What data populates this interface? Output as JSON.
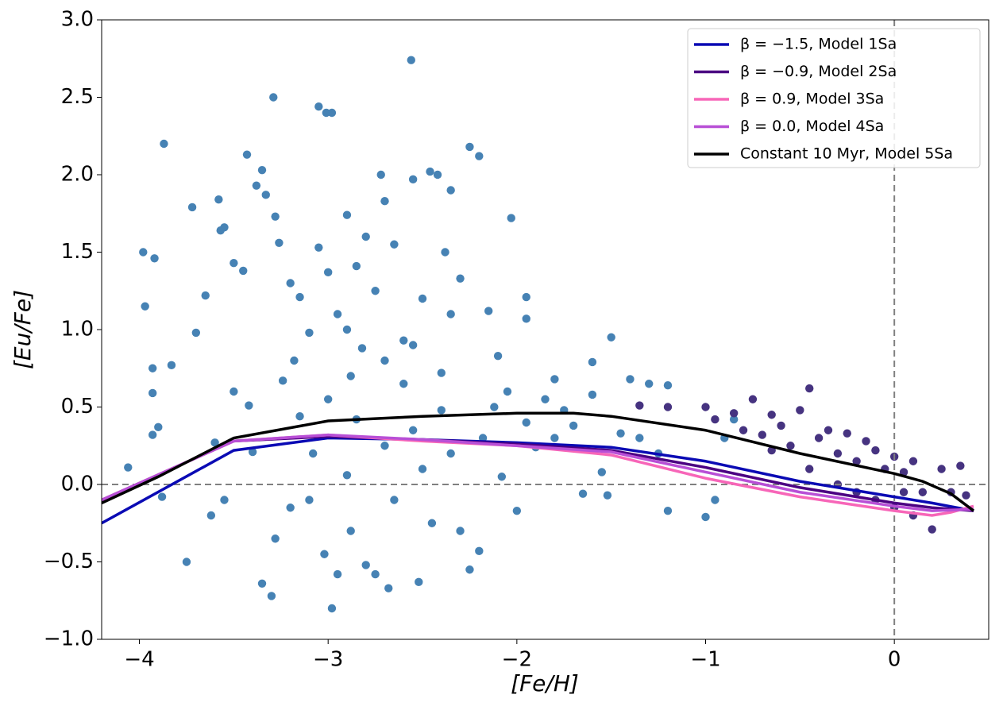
{
  "chart_data": {
    "type": "scatter",
    "x_label": "[Fe/H]",
    "y_label": "[Eu/Fe]",
    "xlim": [
      -4.2,
      0.5
    ],
    "ylim": [
      -1.0,
      3.0
    ],
    "xticks": [
      {
        "value": -4,
        "label": "−4"
      },
      {
        "value": -3,
        "label": "−3"
      },
      {
        "value": -2,
        "label": "−2"
      },
      {
        "value": -1,
        "label": "−1"
      },
      0
    ],
    "yticks": [
      {
        "value": -1.0,
        "label": "−1.0"
      },
      {
        "value": -0.5,
        "label": "−0.5"
      },
      {
        "value": 0.0,
        "label": "0.0"
      },
      {
        "value": 0.5,
        "label": "0.5"
      },
      {
        "value": 1.0,
        "label": "1.0"
      },
      {
        "value": 1.5,
        "label": "1.5"
      },
      {
        "value": 2.0,
        "label": "2.0"
      },
      {
        "value": 2.5,
        "label": "2.5"
      },
      {
        "value": 3.0,
        "label": "3.0"
      }
    ],
    "hlines": [
      0
    ],
    "vlines": [
      0
    ],
    "legend": "upper right",
    "scatter_series": [
      {
        "color": "#4682b4",
        "x": [
          -3.87,
          -3.98,
          -3.92,
          -3.97,
          -3.93,
          -3.93,
          -3.83,
          -3.9,
          -3.93,
          -4.06,
          -3.88,
          -3.75,
          -3.72,
          -3.58,
          -3.57,
          -3.55,
          -3.5,
          -3.45,
          -3.43,
          -3.38,
          -3.35,
          -3.33,
          -3.28,
          -3.29,
          -3.26,
          -3.2,
          -3.15,
          -3.1,
          -3.05,
          -3.01,
          -2.98,
          -3.05,
          -3.0,
          -2.95,
          -2.9,
          -2.88,
          -2.85,
          -2.8,
          -2.75,
          -2.72,
          -2.7,
          -2.65,
          -2.6,
          -2.56,
          -2.55,
          -2.5,
          -2.46,
          -2.42,
          -2.38,
          -2.35,
          -2.3,
          -2.25,
          -2.2,
          -2.15,
          -2.1,
          -2.03,
          -2.05,
          -1.95,
          -1.95,
          -1.8,
          -1.6,
          -1.5,
          -1.4,
          -1.3,
          -1.2,
          -3.65,
          -3.7,
          -3.6,
          -3.62,
          -3.55,
          -3.5,
          -3.42,
          -3.4,
          -3.35,
          -3.3,
          -3.28,
          -3.24,
          -3.2,
          -3.15,
          -3.1,
          -3.08,
          -3.02,
          -2.98,
          -2.95,
          -2.9,
          -2.88,
          -2.82,
          -2.8,
          -2.75,
          -2.7,
          -2.68,
          -2.65,
          -2.6,
          -2.55,
          -2.52,
          -2.5,
          -2.45,
          -2.4,
          -2.35,
          -2.3,
          -2.25,
          -2.2,
          -2.18,
          -2.12,
          -2.08,
          -2.0,
          -1.95,
          -1.9,
          -1.85,
          -1.8,
          -1.75,
          -1.7,
          -1.65,
          -1.6,
          -1.55,
          -1.52,
          -1.45,
          -1.35,
          -1.25,
          -1.2,
          -1.0,
          -0.95,
          -0.9,
          -0.85,
          -3.0,
          -2.85,
          -2.7,
          -2.55,
          -2.4,
          -2.35,
          -2.9,
          -3.18
        ],
        "values": [
          2.2,
          1.5,
          1.46,
          1.15,
          0.75,
          0.59,
          0.77,
          0.37,
          0.32,
          0.11,
          -0.08,
          -0.5,
          1.79,
          1.84,
          1.64,
          1.66,
          1.43,
          1.38,
          2.13,
          1.93,
          2.03,
          1.87,
          1.73,
          2.5,
          1.56,
          1.3,
          1.21,
          0.98,
          2.44,
          2.4,
          2.4,
          1.53,
          1.37,
          1.1,
          1.74,
          0.7,
          1.41,
          1.6,
          1.25,
          2.0,
          1.83,
          1.55,
          0.93,
          2.74,
          1.97,
          1.2,
          2.02,
          2.0,
          1.5,
          1.9,
          1.33,
          2.18,
          2.12,
          1.12,
          0.83,
          1.72,
          0.6,
          1.21,
          1.07,
          0.68,
          0.79,
          0.95,
          0.68,
          0.65,
          0.64,
          1.22,
          0.98,
          0.27,
          -0.2,
          -0.1,
          0.6,
          0.51,
          0.21,
          -0.64,
          -0.72,
          -0.35,
          0.67,
          -0.15,
          0.44,
          -0.1,
          0.2,
          -0.45,
          -0.8,
          -0.58,
          0.06,
          -0.3,
          0.88,
          -0.52,
          -0.58,
          0.25,
          -0.67,
          -0.1,
          0.65,
          0.35,
          -0.63,
          0.1,
          -0.25,
          0.48,
          0.2,
          -0.3,
          -0.55,
          -0.43,
          0.3,
          0.5,
          0.05,
          -0.17,
          0.4,
          0.24,
          0.55,
          0.3,
          0.48,
          0.38,
          -0.06,
          0.58,
          0.08,
          -0.07,
          0.33,
          0.3,
          0.2,
          -0.17,
          -0.21,
          -0.1,
          0.3,
          0.42,
          0.55,
          0.42,
          0.8,
          0.9,
          0.72,
          1.1,
          1.0,
          0.8
        ]
      },
      {
        "color": "#463380",
        "x": [
          -1.35,
          -1.2,
          -1.0,
          -0.95,
          -0.85,
          -0.8,
          -0.7,
          -0.65,
          -0.6,
          -0.55,
          -0.5,
          -0.45,
          -0.4,
          -0.35,
          -0.3,
          -0.25,
          -0.2,
          -0.15,
          -0.1,
          -0.05,
          0.0,
          0.05,
          0.1,
          0.15,
          0.2,
          0.25,
          0.3,
          0.35,
          0.38,
          -0.75,
          -0.65,
          -0.45,
          -0.3,
          -0.2,
          -0.1,
          0.0,
          0.1,
          0.05
        ],
        "values": [
          0.51,
          0.5,
          0.5,
          0.42,
          0.46,
          0.35,
          0.32,
          0.45,
          0.38,
          0.25,
          0.48,
          0.62,
          0.3,
          0.35,
          0.2,
          0.33,
          0.15,
          0.28,
          0.22,
          0.1,
          0.18,
          0.08,
          0.15,
          -0.05,
          -0.29,
          0.1,
          -0.05,
          0.12,
          -0.07,
          0.55,
          0.22,
          0.1,
          0.0,
          -0.05,
          -0.1,
          -0.15,
          -0.2,
          -0.05
        ]
      }
    ],
    "series": [
      {
        "name": "β = −1.5, Model 1Sa",
        "color": "#0a0ab4",
        "x": [
          -4.2,
          -3.5,
          -3.0,
          -2.5,
          -2.0,
          -1.5,
          -1.0,
          -0.5,
          0.0,
          0.2,
          0.42
        ],
        "values": [
          -0.25,
          0.22,
          0.3,
          0.29,
          0.27,
          0.24,
          0.15,
          0.02,
          -0.08,
          -0.12,
          -0.17
        ]
      },
      {
        "name": "β = −0.9, Model 2Sa",
        "color": "#4b0082",
        "x": [
          -4.2,
          -3.5,
          -3.0,
          -2.5,
          -2.0,
          -1.5,
          -1.0,
          -0.5,
          0.0,
          0.2,
          0.42
        ],
        "values": [
          -0.1,
          0.28,
          0.31,
          0.29,
          0.26,
          0.22,
          0.11,
          -0.02,
          -0.12,
          -0.15,
          -0.17
        ]
      },
      {
        "name": "β = 0.9, Model 3Sa",
        "color": "#f766b8",
        "x": [
          -4.2,
          -3.5,
          -3.0,
          -2.5,
          -2.0,
          -1.5,
          -1.0,
          -0.5,
          0.0,
          0.2,
          0.3,
          0.42
        ],
        "values": [
          -0.1,
          0.28,
          0.32,
          0.28,
          0.25,
          0.19,
          0.04,
          -0.08,
          -0.17,
          -0.2,
          -0.18,
          -0.14
        ]
      },
      {
        "name": "β = 0.0, Model 4Sa",
        "color": "#b84fd6",
        "x": [
          -4.2,
          -3.5,
          -3.0,
          -2.5,
          -2.0,
          -1.5,
          -1.0,
          -0.5,
          0.0,
          0.2,
          0.42
        ],
        "values": [
          -0.1,
          0.28,
          0.32,
          0.29,
          0.25,
          0.21,
          0.08,
          -0.05,
          -0.14,
          -0.17,
          -0.16
        ]
      },
      {
        "name": "Constant 10 Myr, Model 5Sa",
        "color": "#000000",
        "x": [
          -4.2,
          -3.9,
          -3.5,
          -3.0,
          -2.5,
          -2.0,
          -1.7,
          -1.5,
          -1.0,
          -0.5,
          0.0,
          0.15,
          0.3,
          0.42
        ],
        "values": [
          -0.12,
          0.05,
          0.3,
          0.41,
          0.44,
          0.46,
          0.46,
          0.44,
          0.35,
          0.2,
          0.07,
          0.02,
          -0.06,
          -0.17
        ]
      }
    ]
  }
}
